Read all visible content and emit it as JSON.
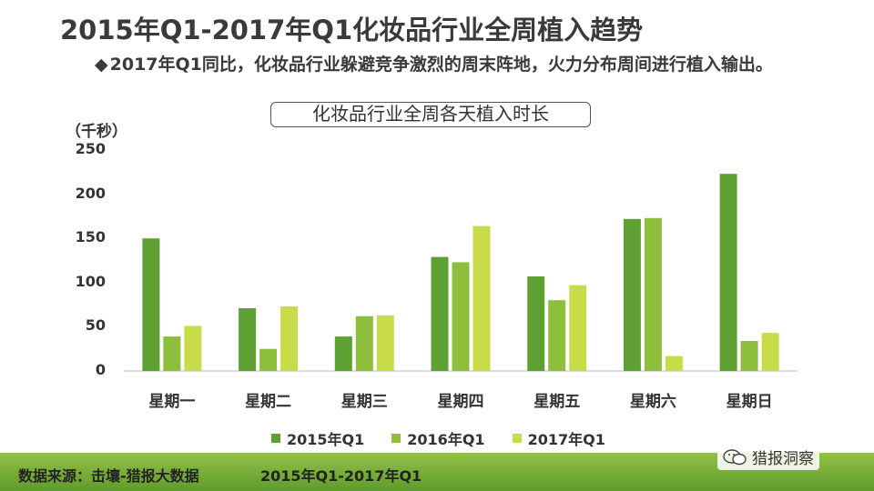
{
  "title": "2015年Q1-2017年Q1化妆品行业全周植入趋势",
  "bullet": {
    "marker": "◆",
    "text": "2017年Q1同比，化妆品行业躲避竞争激烈的周末阵地，火力分布周间进行植入输出。"
  },
  "footer": {
    "source": "数据来源：击壤-猎报大数据",
    "period": "2015年Q1-2017年Q1",
    "logo": "猎报洞察"
  },
  "colors": {
    "s2015": "#5ea132",
    "s2016": "#8dbe3c",
    "s2017": "#c8dc4a",
    "footer": "#7cb13c"
  },
  "chart_data": {
    "type": "bar",
    "title": "化妆品行业全周各天植入时长",
    "unit": "（千秒）",
    "categories": [
      "星期一",
      "星期二",
      "星期三",
      "星期四",
      "星期五",
      "星期六",
      "星期日"
    ],
    "yticks": [
      "250",
      "200",
      "150",
      "100",
      "50",
      "0"
    ],
    "ylim": [
      0,
      250
    ],
    "series": [
      {
        "name": "2015年Q1",
        "values": [
          150,
          71,
          39,
          129,
          107,
          172,
          223
        ]
      },
      {
        "name": "2016年Q1",
        "values": [
          39,
          25,
          62,
          123,
          80,
          173,
          34
        ]
      },
      {
        "name": "2017年Q1",
        "values": [
          51,
          73,
          63,
          164,
          97,
          17,
          43
        ]
      }
    ],
    "legend": "bottom",
    "grid": false
  }
}
